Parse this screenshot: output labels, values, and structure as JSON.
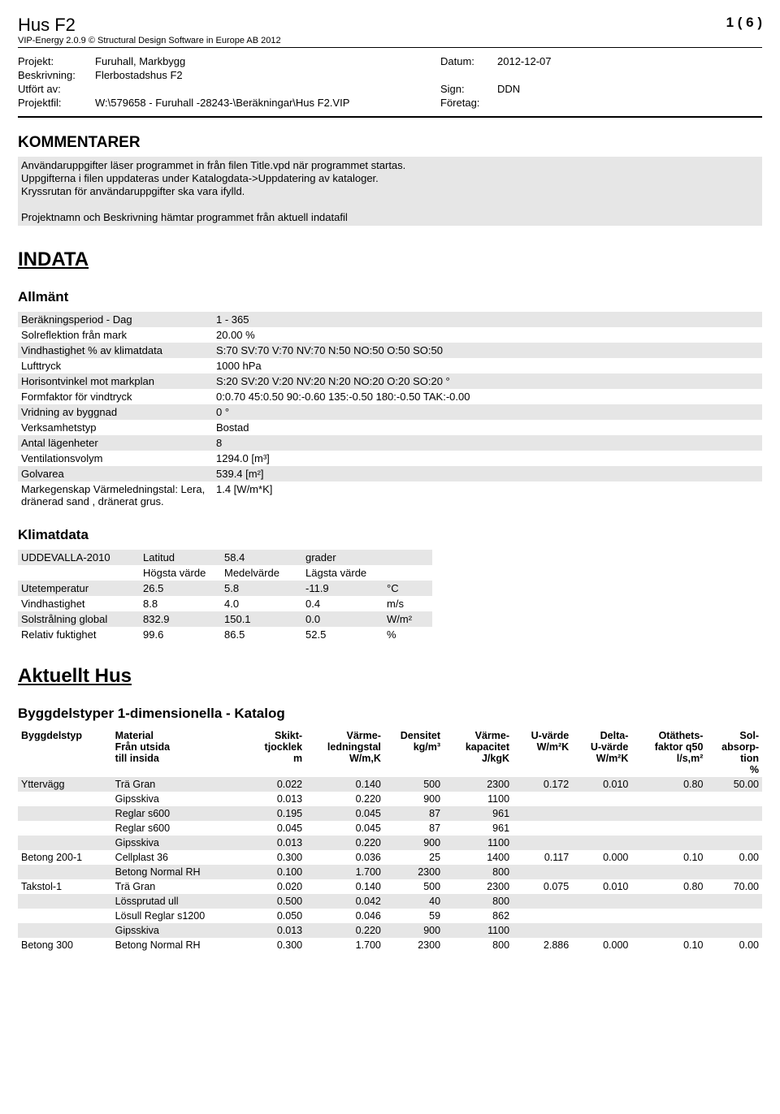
{
  "header": {
    "title": "Hus F2",
    "page_num": "1 ( 6 )",
    "subtitle": "VIP-Energy 2.0.9 © Structural Design Software in Europe AB 2012",
    "rows": [
      {
        "lbl": "Projekt:",
        "val": "Furuhall, Markbygg",
        "lbl2": "Datum:",
        "val2": "2012-12-07"
      },
      {
        "lbl": "Beskrivning:",
        "val": "Flerbostadshus F2",
        "lbl2": "",
        "val2": ""
      },
      {
        "lbl": "Utfört av:",
        "val": "",
        "lbl2": "Sign:",
        "val2": "DDN"
      },
      {
        "lbl": "Projektfil:",
        "val": "W:\\579658 - Furuhall -28243-\\Beräkningar\\Hus F2.VIP",
        "lbl2": "Företag:",
        "val2": ""
      }
    ]
  },
  "kommentarer": {
    "heading": "KOMMENTARER",
    "lines": [
      "Användaruppgifter läser programmet in från filen Title.vpd när programmet startas.",
      "Uppgifterna i filen uppdateras under Katalogdata->Uppdatering av kataloger.",
      "Kryssrutan för användaruppgifter ska vara ifylld.",
      "",
      "Projektnamn och Beskrivning hämtar programmet från aktuell indatafil"
    ]
  },
  "indata": {
    "heading": "INDATA",
    "allmant_heading": "Allmänt",
    "allmant": [
      [
        "Beräkningsperiod - Dag",
        "1 - 365"
      ],
      [
        "Solreflektion från mark",
        "20.00 %"
      ],
      [
        "Vindhastighet % av klimatdata",
        "S:70 SV:70 V:70 NV:70 N:50 NO:50 O:50 SO:50"
      ],
      [
        "Lufttryck",
        "1000 hPa"
      ],
      [
        "Horisontvinkel mot markplan",
        "S:20 SV:20 V:20 NV:20 N:20 NO:20 O:20 SO:20 °"
      ],
      [
        "Formfaktor för vindtryck",
        "0:0.70 45:0.50 90:-0.60 135:-0.50 180:-0.50 TAK:-0.00"
      ],
      [
        "Vridning av byggnad",
        "0 °"
      ],
      [
        "Verksamhetstyp",
        "Bostad"
      ],
      [
        "Antal lägenheter",
        "8"
      ],
      [
        "Ventilationsvolym",
        "1294.0 [m³]"
      ],
      [
        "Golvarea",
        "539.4 [m²]"
      ],
      [
        "Markegenskap Värmeledningstal: Lera, dränerad sand , dränerat grus.",
        "1.4 [W/m*K]"
      ]
    ]
  },
  "klimat": {
    "heading": "Klimatdata",
    "station": "UDDEVALLA-2010",
    "lat_lbl": "Latitud",
    "lat_val": "58.4",
    "lat_unit": "grader",
    "cols": [
      "",
      "Högsta värde",
      "Medelvärde",
      "Lägsta värde",
      ""
    ],
    "rows": [
      [
        "Utetemperatur",
        "26.5",
        "5.8",
        "-11.9",
        "°C"
      ],
      [
        "Vindhastighet",
        "8.8",
        "4.0",
        "0.4",
        "m/s"
      ],
      [
        "Solstrålning global",
        "832.9",
        "150.1",
        "0.0",
        "W/m²"
      ],
      [
        "Relativ fuktighet",
        "99.6",
        "86.5",
        "52.5",
        "%"
      ]
    ]
  },
  "hus": {
    "heading": "Aktuellt Hus",
    "bygg_heading": "Byggdelstyper 1-dimensionella - Katalog",
    "th": [
      "Byggdelstyp",
      "Material\nFrån utsida\ntill insida",
      "Skikt-\ntjocklek\nm",
      "Värme-\nledningstal\nW/m,K",
      "Densitet\nkg/m³",
      "Värme-\nkapacitet\nJ/kgK",
      "U-värde\nW/m²K",
      "Delta-\nU-värde\nW/m²K",
      "Otäthets-\nfaktor q50\nl/s,m²",
      "Sol-\nabsorp-\ntion\n%"
    ],
    "rows": [
      {
        "s": 1,
        "c": [
          "Yttervägg",
          "Trä Gran",
          "0.022",
          "0.140",
          "500",
          "2300",
          "0.172",
          "0.010",
          "0.80",
          "50.00"
        ]
      },
      {
        "s": 0,
        "c": [
          "",
          "Gipsskiva",
          "0.013",
          "0.220",
          "900",
          "1100",
          "",
          "",
          "",
          ""
        ]
      },
      {
        "s": 1,
        "c": [
          "",
          "Reglar s600",
          "0.195",
          "0.045",
          "87",
          "961",
          "",
          "",
          "",
          ""
        ]
      },
      {
        "s": 0,
        "c": [
          "",
          "Reglar s600",
          "0.045",
          "0.045",
          "87",
          "961",
          "",
          "",
          "",
          ""
        ]
      },
      {
        "s": 1,
        "c": [
          "",
          "Gipsskiva",
          "0.013",
          "0.220",
          "900",
          "1100",
          "",
          "",
          "",
          ""
        ]
      },
      {
        "s": 0,
        "c": [
          "Betong 200-1",
          "Cellplast 36",
          "0.300",
          "0.036",
          "25",
          "1400",
          "0.117",
          "0.000",
          "0.10",
          "0.00"
        ]
      },
      {
        "s": 1,
        "c": [
          "",
          "Betong Normal RH",
          "0.100",
          "1.700",
          "2300",
          "800",
          "",
          "",
          "",
          ""
        ]
      },
      {
        "s": 0,
        "c": [
          "Takstol-1",
          "Trä Gran",
          "0.020",
          "0.140",
          "500",
          "2300",
          "0.075",
          "0.010",
          "0.80",
          "70.00"
        ]
      },
      {
        "s": 1,
        "c": [
          "",
          "Lössprutad ull",
          "0.500",
          "0.042",
          "40",
          "800",
          "",
          "",
          "",
          ""
        ]
      },
      {
        "s": 0,
        "c": [
          "",
          "Lösull Reglar s1200",
          "0.050",
          "0.046",
          "59",
          "862",
          "",
          "",
          "",
          ""
        ]
      },
      {
        "s": 1,
        "c": [
          "",
          "Gipsskiva",
          "0.013",
          "0.220",
          "900",
          "1100",
          "",
          "",
          "",
          ""
        ]
      },
      {
        "s": 0,
        "c": [
          "Betong 300",
          "Betong Normal RH",
          "0.300",
          "1.700",
          "2300",
          "800",
          "2.886",
          "0.000",
          "0.10",
          "0.00"
        ]
      }
    ]
  }
}
